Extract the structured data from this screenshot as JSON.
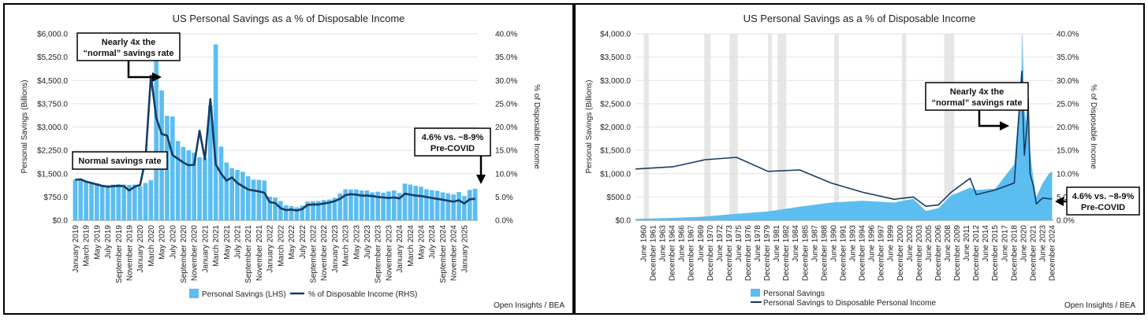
{
  "chart_data": [
    {
      "type": "bar",
      "title": "US Personal Savings as a % of Disposable Income",
      "ylabel": "Personal Savings (Billions)",
      "y2label": "% of Disposable Income",
      "ylim": [
        0,
        6000
      ],
      "y2lim": [
        0,
        40
      ],
      "yticks": [
        "$0.0",
        "$750.0",
        "$1,500.0",
        "$2,250.0",
        "$3,000.0",
        "$3,750.0",
        "$4,500.0",
        "$5,250.0",
        "$6,000.0"
      ],
      "y2ticks": [
        "0.0%",
        "5.0%",
        "10.0%",
        "15.0%",
        "20.0%",
        "25.0%",
        "30.0%",
        "35.0%",
        "40.0%"
      ],
      "xticks": [
        "January 2019",
        "March 2019",
        "May 2019",
        "July 2019",
        "September 2019",
        "November 2019",
        "January 2020",
        "March 2020",
        "May 2020",
        "July 2020",
        "September 2020",
        "November 2020",
        "January 2021",
        "March 2021",
        "May 2021",
        "July 2021",
        "September 2021",
        "November 2021",
        "January 2022",
        "March 2022",
        "May 2022",
        "July 2022",
        "September 2022",
        "November 2022",
        "January 2023",
        "March 2023",
        "May 2023",
        "July 2023",
        "September 2023",
        "November 2023",
        "January 2024",
        "March 2024",
        "May 2024",
        "July 2024",
        "September 2024",
        "November 2024",
        "January 2025"
      ],
      "series": [
        {
          "name": "Personal Savings (LHS)",
          "type": "bar",
          "values": [
            1310,
            1330,
            1260,
            1230,
            1190,
            1140,
            1130,
            1150,
            1160,
            1150,
            1140,
            1150,
            1100,
            1200,
            1290,
            5180,
            4180,
            3360,
            3340,
            2550,
            2360,
            2250,
            2180,
            2030,
            2000,
            3700,
            5660,
            2370,
            1860,
            1680,
            1620,
            1560,
            1420,
            1310,
            1300,
            1280,
            760,
            730,
            620,
            480,
            460,
            420,
            470,
            600,
            610,
            620,
            650,
            670,
            720,
            860,
            1000,
            990,
            990,
            960,
            960,
            900,
            920,
            890,
            930,
            960,
            880,
            1180,
            1150,
            1110,
            1080,
            1000,
            970,
            950,
            900,
            870,
            830,
            910,
            780,
            980,
            1020
          ]
        },
        {
          "name": "% of Disposable Income (RHS)",
          "type": "line",
          "axis": "right",
          "values": [
            8.7,
            8.8,
            8.3,
            8.0,
            7.7,
            7.4,
            7.2,
            7.3,
            7.4,
            7.3,
            6.4,
            7.2,
            7.6,
            13.0,
            31.0,
            22.0,
            18.5,
            18.2,
            14.0,
            13.2,
            12.4,
            11.8,
            11.9,
            19.2,
            13.1,
            26.0,
            12.0,
            10.0,
            8.5,
            9.2,
            8.0,
            7.3,
            6.6,
            6.4,
            6.2,
            5.9,
            3.9,
            3.7,
            2.6,
            2.2,
            2.3,
            2.1,
            2.4,
            3.3,
            3.4,
            3.4,
            3.6,
            3.8,
            4.1,
            4.6,
            5.4,
            5.6,
            5.5,
            5.3,
            5.3,
            5.2,
            5.0,
            4.9,
            4.8,
            4.9,
            4.7,
            5.7,
            5.5,
            5.3,
            5.2,
            5.0,
            4.8,
            4.6,
            4.4,
            4.2,
            4.0,
            4.3,
            3.6,
            4.5,
            4.6
          ]
        }
      ],
      "annotations": [
        {
          "lines": [
            "Nearly 4x the",
            "“normal” savings rate"
          ]
        },
        {
          "lines": [
            "Normal savings rate"
          ]
        },
        {
          "lines": [
            "4.6% vs. ~8-9%",
            "Pre-COVID"
          ]
        }
      ],
      "credit": "Open Insights / BEA",
      "legend": "bottom-center"
    },
    {
      "type": "area",
      "title": "US Personal Savings as a % of Disposable Income",
      "ylabel": "Personal Savings (Billions)",
      "y2label": "% of Disposable Income",
      "ylim": [
        0,
        4000
      ],
      "y2lim": [
        0,
        40
      ],
      "yticks": [
        "$0.0",
        "$500.0",
        "$1,000.0",
        "$1,500.0",
        "$2,000.0",
        "$2,500.0",
        "$3,000.0",
        "$3,500.0",
        "$4,000.0"
      ],
      "y2ticks": [
        "0.0%",
        "5.0%",
        "10.0%",
        "15.0%",
        "20.0%",
        "25.0%",
        "30.0%",
        "35.0%",
        "40.0%"
      ],
      "xticks": [
        "June 1960",
        "December 1961",
        "June 1963",
        "December 1964",
        "June 1966",
        "December 1967",
        "June 1969",
        "December 1970",
        "June 1972",
        "December 1973",
        "June 1975",
        "December 1976",
        "June 1978",
        "December 1979",
        "June 1981",
        "December 1982",
        "June 1984",
        "December 1985",
        "June 1987",
        "December 1988",
        "June 1990",
        "December 1991",
        "June 1993",
        "December 1994",
        "June 1996",
        "December 1997",
        "June 1999",
        "December 2000",
        "June 2002",
        "December 2003",
        "June 2005",
        "December 2006",
        "June 2008",
        "December 2009",
        "June 2011",
        "December 2012",
        "June 2014",
        "December 2015",
        "June 2017",
        "December 2018",
        "June 2020",
        "December 2021",
        "June 2023",
        "December 2024"
      ],
      "x": [
        1959,
        1965,
        1970,
        1975,
        1980,
        1985,
        1990,
        1995,
        2000,
        2003,
        2005,
        2007,
        2009,
        2012,
        2013,
        2016,
        2019,
        2020.2,
        2020.3,
        2020.6,
        2021.0,
        2021.2,
        2021.5,
        2022.0,
        2022.5,
        2023.5,
        2024.5,
        2025.0
      ],
      "series": [
        {
          "name": "Personal Savings",
          "type": "area",
          "values": [
            30,
            50,
            80,
            140,
            190,
            290,
            380,
            420,
            380,
            460,
            200,
            260,
            530,
            700,
            650,
            680,
            1200,
            3200,
            4000,
            2400,
            2000,
            2600,
            1500,
            900,
            500,
            800,
            1000,
            1050
          ]
        },
        {
          "name": "Personal Savings to Disposable Personal Income",
          "type": "line",
          "axis": "right",
          "values": [
            11.0,
            11.5,
            13.0,
            13.5,
            10.5,
            10.8,
            8.0,
            6.0,
            4.5,
            5.0,
            3.0,
            3.3,
            6.0,
            9.0,
            5.5,
            6.5,
            8.0,
            32.0,
            26.0,
            14.0,
            20.0,
            26.0,
            10.0,
            7.5,
            3.5,
            4.8,
            4.6,
            4.6
          ]
        }
      ],
      "annotations": [
        {
          "lines": [
            "Nearly 4x the",
            "“normal” savings rate"
          ]
        },
        {
          "lines": [
            "4.6% vs. ~8-9%",
            "Pre-COVID"
          ]
        }
      ],
      "credit": "Open Insights / BEA",
      "legend": "bottom-left"
    }
  ],
  "colors": {
    "bar": "#5bbdf0",
    "area": "#5bbdf0",
    "line": "#163c62",
    "recession": "#e6e6e6"
  }
}
